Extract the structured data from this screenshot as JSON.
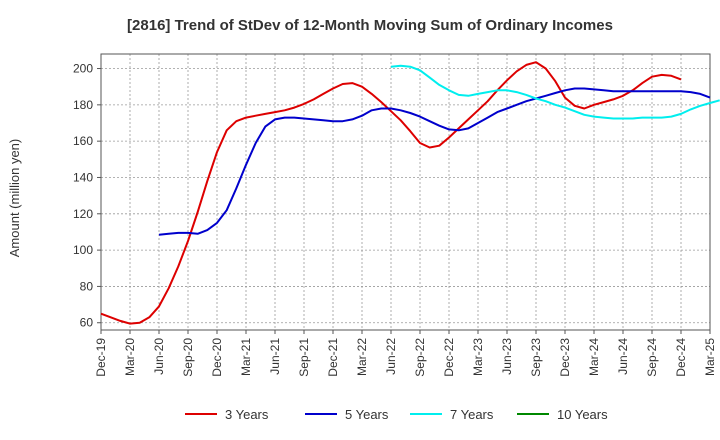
{
  "chart_data": {
    "type": "line",
    "title": "[2816]  Trend of StDev of 12-Month Moving Sum of Ordinary Incomes",
    "xlabel": "",
    "ylabel": "Amount (million yen)",
    "ylim": [
      56,
      208
    ],
    "yticks": [
      60,
      80,
      100,
      120,
      140,
      160,
      180,
      200
    ],
    "x_tick_labels": [
      "Dec-19",
      "Mar-20",
      "Jun-20",
      "Sep-20",
      "Dec-20",
      "Mar-21",
      "Jun-21",
      "Sep-21",
      "Dec-21",
      "Mar-22",
      "Jun-22",
      "Sep-22",
      "Dec-22",
      "Mar-23",
      "Jun-23",
      "Sep-23",
      "Dec-23",
      "Mar-24",
      "Jun-24",
      "Sep-24",
      "Dec-24",
      "Mar-25"
    ],
    "grid": true,
    "legend_position": "bottom",
    "series": [
      {
        "name": "3 Years",
        "color": "#dd0000",
        "start_index": 0,
        "values": [
          65,
          63,
          61,
          59.5,
          60,
          63,
          69,
          79,
          91,
          105,
          121,
          138,
          154,
          166,
          171,
          173,
          174,
          175,
          176,
          177,
          178.5,
          180.5,
          183,
          186,
          189,
          191.5,
          192,
          190,
          186,
          181.5,
          176.5,
          171.5,
          165.5,
          159,
          156.5,
          157.5,
          162,
          167,
          172,
          177,
          182,
          188,
          193.5,
          198.5,
          202,
          203.5,
          200,
          193,
          184,
          179.5,
          178,
          180,
          181.5,
          183,
          185,
          188,
          192,
          195.5,
          196.5,
          196,
          194
        ]
      },
      {
        "name": "5 Years",
        "color": "#0000cc",
        "start_index": 6,
        "values": [
          108.5,
          109,
          109.5,
          109.5,
          109,
          111,
          115,
          122,
          134,
          147,
          159,
          168,
          172,
          173,
          173,
          172.5,
          172,
          171.5,
          171,
          171,
          172,
          174,
          177,
          178,
          178,
          177,
          175.5,
          173.5,
          171,
          168.5,
          166.5,
          166,
          167,
          170,
          173,
          176,
          178,
          180,
          182,
          183.5,
          185,
          186.5,
          188,
          189,
          189,
          188.5,
          188,
          187.5,
          187.5,
          187.5,
          187.5,
          187.5,
          187.5,
          187.5,
          187.5,
          187,
          186,
          184
        ]
      },
      {
        "name": "7 Years",
        "color": "#00eeee",
        "start_index": 30,
        "values": [
          201,
          201.5,
          201,
          199,
          195,
          191,
          188,
          185.5,
          185,
          186,
          187,
          188,
          188,
          187,
          185.5,
          183.5,
          182,
          180,
          178.5,
          176.5,
          174.5,
          173.5,
          173,
          172.5,
          172.5,
          172.5,
          173,
          173,
          173,
          173.5,
          175,
          177.5,
          179.5,
          181,
          182.5
        ]
      },
      {
        "name": "10 Years",
        "color": "#008800",
        "start_index": 0,
        "values": []
      }
    ]
  }
}
